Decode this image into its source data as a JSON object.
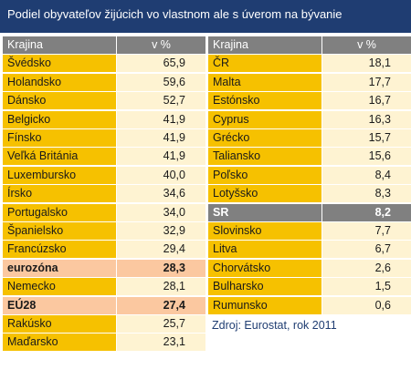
{
  "title": "Podiel obyvateľov žijúcich vo vlastnom ale s úverom na bývanie",
  "left": {
    "header": [
      "Krajina",
      "v  %"
    ],
    "rows": [
      [
        "Švédsko",
        "65,9"
      ],
      [
        "Holandsko",
        "59,6"
      ],
      [
        "Dánsko",
        "52,7"
      ],
      [
        "Belgicko",
        "41,9"
      ],
      [
        "Fínsko",
        "41,9"
      ],
      [
        "Veľká Británia",
        "41,9"
      ],
      [
        "Luxembursko",
        "40,0"
      ],
      [
        "Írsko",
        "34,6"
      ],
      [
        "Portugalsko",
        "34,0"
      ],
      [
        "Španielsko",
        "32,9"
      ],
      [
        "Francúzsko",
        "29,4"
      ],
      [
        "eurozóna",
        "28,3"
      ],
      [
        "Nemecko",
        "28,1"
      ],
      [
        "EÚ28",
        "27,4"
      ],
      [
        "Rakúsko",
        "25,7"
      ],
      [
        "Maďarsko",
        "23,1"
      ]
    ]
  },
  "right": {
    "header": [
      "Krajina",
      "v  %"
    ],
    "rows": [
      [
        "ČR",
        "18,1"
      ],
      [
        "Malta",
        "17,7"
      ],
      [
        "Estónsko",
        "16,7"
      ],
      [
        "Cyprus",
        "16,3"
      ],
      [
        "Grécko",
        "15,7"
      ],
      [
        "Taliansko",
        "15,6"
      ],
      [
        "Poľsko",
        "8,4"
      ],
      [
        "Lotyšsko",
        "8,3"
      ],
      [
        "SR",
        "8,2"
      ],
      [
        "Slovinsko",
        "7,7"
      ],
      [
        "Litva",
        "6,7"
      ],
      [
        "Chorvátsko",
        "2,6"
      ],
      [
        "Bulharsko",
        "1,5"
      ],
      [
        "Rumunsko",
        "0,6"
      ]
    ]
  },
  "source": "Zdroj: Eurostat, rok 2011"
}
